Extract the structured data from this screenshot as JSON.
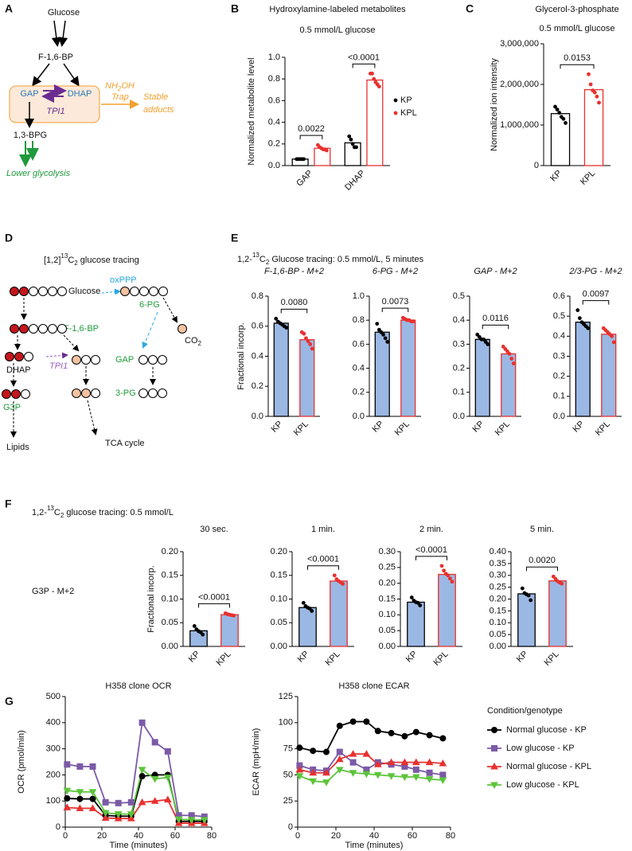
{
  "panel_labels": [
    "A",
    "B",
    "C",
    "D",
    "E",
    "F",
    "G"
  ],
  "diagram_a": {
    "glucose": "Glucose",
    "f16bp": "F-1,6-BP",
    "gap": "GAP",
    "dhap": "DHAP",
    "tpi1": "TPI1",
    "nh2oh": [
      "NH",
      "2",
      "OH"
    ],
    "trap": "Trap",
    "stable_adducts": [
      "Stable",
      "adducts"
    ],
    "bpg": "1,3-BPG",
    "lower_glycolysis": "Lower glycolysis"
  },
  "diagram_d": {
    "title": [
      "[1,2]",
      "13",
      "C",
      "2",
      " glucose tracing"
    ],
    "glucose": "Glucose",
    "oxppp": "oxPPP",
    "pg6": "6-PG",
    "co2": [
      "CO",
      "2"
    ],
    "f16bp": "F-1,6-BP",
    "dhap": "DHAP",
    "tpi1": "TPI1",
    "gap": "GAP",
    "g3p": "G3P",
    "pg3": "3-PG",
    "lipids": "Lipids",
    "tca": "TCA cycle"
  },
  "panel_e": {
    "title": [
      "1,2-",
      "13",
      "C",
      "2",
      " Glucose tracing: 0.5 mmol/L, 5 minutes"
    ]
  },
  "panel_f": {
    "title": [
      "1,2-",
      "13",
      "C",
      "2",
      " glucose tracing: 0.5 mmol/L"
    ],
    "metabolite": "G3P - M+2"
  },
  "chart_data": [
    {
      "type": "bar",
      "title": "Hydroxylamine-labeled metabolites",
      "subtitle": "0.5 mmol/L glucose",
      "ylabel": "Normalized metabolite level",
      "categories": [
        "GAP",
        "DHAP"
      ],
      "series": [
        {
          "name": "KP",
          "color": "#000000",
          "values": [
            0.06,
            0.21
          ],
          "points": [
            [
              0.06,
              0.06,
              0.06,
              0.06,
              0.06
            ],
            [
              0.27,
              0.24,
              0.2,
              0.17,
              0.17
            ]
          ]
        },
        {
          "name": "KPL",
          "color": "#e8312f",
          "values": [
            0.16,
            0.79
          ],
          "points": [
            [
              0.19,
              0.17,
              0.16,
              0.15,
              0.15,
              0.14
            ],
            [
              0.85,
              0.85,
              0.8,
              0.77,
              0.75,
              0.73
            ]
          ]
        }
      ],
      "fill": "#ffffff",
      "ylim": [
        0,
        1
      ],
      "yticks": [
        {
          "value": 0,
          "label": "0.0"
        },
        0.2,
        0.4,
        0.6,
        0.8,
        {
          "value": 1,
          "label": "1.0"
        }
      ],
      "pvalues": [
        "0.0022",
        "<0.0001"
      ],
      "legend": "right"
    },
    {
      "type": "bar",
      "title": "Glycerol-3-phosphate",
      "subtitle": "0.5 mmol/L glucose",
      "ylabel": "Normalized ion intensity",
      "categories": [
        "KP",
        "KPL"
      ],
      "values": [
        1280000,
        1870000
      ],
      "colors": [
        "#000000",
        "#e8312f"
      ],
      "points": [
        [
          1450000,
          1380000,
          1300000,
          1200000,
          1150000,
          1050000
        ],
        [
          2250000,
          2000000,
          1850000,
          1800000,
          1700000,
          1550000
        ]
      ],
      "fill": "#ffffff",
      "ylim": [
        0,
        3000000
      ],
      "yticks": [
        0,
        {
          "value": 1000000,
          "label": "1,000,000"
        },
        {
          "value": 2000000,
          "label": "2,000,000"
        },
        {
          "value": 3000000,
          "label": "3,000,000"
        }
      ],
      "pvalues": [
        "0.0153"
      ]
    },
    {
      "type": "bar",
      "title": "F-1,6-BP - M+2",
      "title_style": "italic",
      "ylabel": "Fractional incorp.",
      "categories": [
        "KP",
        "KPL"
      ],
      "values": [
        0.62,
        0.51
      ],
      "colors": [
        "#000000",
        "#e8312f"
      ],
      "points": [
        [
          0.65,
          0.63,
          0.62,
          0.61,
          0.6,
          0.59
        ],
        [
          0.56,
          0.55,
          0.52,
          0.5,
          0.48,
          0.45
        ]
      ],
      "fill": "#9ab8e3",
      "ylim": [
        0,
        0.8
      ],
      "yticks": [
        {
          "value": 0,
          "label": "0.0"
        },
        0.2,
        0.4,
        0.6,
        0.8
      ],
      "pvalues": [
        "0.0080"
      ]
    },
    {
      "type": "bar",
      "title": "6-PG - M+2",
      "title_style": "italic",
      "categories": [
        "KP",
        "KPL"
      ],
      "values": [
        0.7,
        0.8
      ],
      "colors": [
        "#000000",
        "#e8312f"
      ],
      "points": [
        [
          0.77,
          0.72,
          0.7,
          0.68,
          0.65,
          0.62
        ],
        [
          0.82,
          0.81,
          0.8,
          0.8,
          0.79,
          0.79
        ]
      ],
      "fill": "#9ab8e3",
      "ylim": [
        0,
        1
      ],
      "yticks": [
        {
          "value": 0,
          "label": "0.0"
        },
        0.2,
        0.4,
        0.6,
        0.8,
        {
          "value": 1,
          "label": "1.0"
        }
      ],
      "pvalues": [
        "0.0073"
      ]
    },
    {
      "type": "bar",
      "title": "GAP - M+2",
      "title_style": "italic",
      "categories": [
        "KP",
        "KPL"
      ],
      "values": [
        0.32,
        0.26
      ],
      "colors": [
        "#000000",
        "#e8312f"
      ],
      "points": [
        [
          0.34,
          0.33,
          0.32,
          0.32,
          0.31,
          0.3
        ],
        [
          0.29,
          0.28,
          0.27,
          0.26,
          0.24,
          0.22
        ]
      ],
      "fill": "#9ab8e3",
      "ylim": [
        0,
        0.5
      ],
      "yticks": [
        {
          "value": 0,
          "label": "0.0"
        },
        0.1,
        0.2,
        0.3,
        0.4,
        0.5
      ],
      "pvalues": [
        "0.0116"
      ]
    },
    {
      "type": "bar",
      "title": "2/3-PG - M+2",
      "title_style": "italic",
      "categories": [
        "KP",
        "KPL"
      ],
      "values": [
        0.47,
        0.41
      ],
      "colors": [
        "#000000",
        "#e8312f"
      ],
      "points": [
        [
          0.53,
          0.49,
          0.47,
          0.46,
          0.45,
          0.44
        ],
        [
          0.44,
          0.43,
          0.42,
          0.41,
          0.4,
          0.37
        ]
      ],
      "fill": "#9ab8e3",
      "ylim": [
        0,
        0.6
      ],
      "yticks": [
        {
          "value": 0,
          "label": "0.0"
        },
        0.1,
        0.2,
        0.3,
        0.4,
        0.5,
        0.6
      ],
      "pvalues": [
        "0.0097"
      ]
    },
    {
      "type": "bar",
      "title": "30 sec.",
      "ylabel": "Fractional incorp.",
      "categories": [
        "KP",
        "KPL"
      ],
      "values": [
        0.033,
        0.067
      ],
      "colors": [
        "#000000",
        "#e8312f"
      ],
      "points": [
        [
          0.043,
          0.036,
          0.032,
          0.03,
          0.025
        ],
        [
          0.07,
          0.068,
          0.067,
          0.066,
          0.065
        ]
      ],
      "fill": "#9ab8e3",
      "ylim": [
        0,
        0.2
      ],
      "yticks": [
        {
          "value": 0,
          "label": "0.00"
        },
        0.05,
        {
          "value": 0.1,
          "label": "0.10"
        },
        0.15,
        {
          "value": 0.2,
          "label": "0.20"
        }
      ],
      "pvalues": [
        "<0.0001"
      ]
    },
    {
      "type": "bar",
      "title": "1 min.",
      "categories": [
        "KP",
        "KPL"
      ],
      "values": [
        0.082,
        0.138
      ],
      "colors": [
        "#000000",
        "#e8312f"
      ],
      "points": [
        [
          0.092,
          0.085,
          0.082,
          0.08,
          0.075
        ],
        [
          0.15,
          0.142,
          0.138,
          0.135,
          0.132
        ]
      ],
      "fill": "#9ab8e3",
      "ylim": [
        0,
        0.2
      ],
      "yticks": [
        {
          "value": 0,
          "label": "0.00"
        },
        0.05,
        {
          "value": 0.1,
          "label": "0.10"
        },
        0.15,
        {
          "value": 0.2,
          "label": "0.20"
        }
      ],
      "pvalues": [
        "<0.0001"
      ]
    },
    {
      "type": "bar",
      "title": "2 min.",
      "categories": [
        "KP",
        "KPL"
      ],
      "values": [
        0.14,
        0.228
      ],
      "colors": [
        "#000000",
        "#e8312f"
      ],
      "points": [
        [
          0.155,
          0.145,
          0.14,
          0.138,
          0.13
        ],
        [
          0.255,
          0.24,
          0.23,
          0.225,
          0.215,
          0.205
        ]
      ],
      "fill": "#9ab8e3",
      "ylim": [
        0,
        0.3
      ],
      "yticks": [
        {
          "value": 0,
          "label": "0.00"
        },
        0.05,
        {
          "value": 0.1,
          "label": "0.10"
        },
        0.15,
        {
          "value": 0.2,
          "label": "0.20"
        },
        0.25,
        {
          "value": 0.3,
          "label": "0.30"
        }
      ],
      "pvalues": [
        "<0.0001"
      ]
    },
    {
      "type": "bar",
      "title": "5 min.",
      "categories": [
        "KP",
        "KPL"
      ],
      "values": [
        0.222,
        0.277
      ],
      "colors": [
        "#000000",
        "#e8312f"
      ],
      "points": [
        [
          0.245,
          0.225,
          0.22,
          0.215,
          0.195
        ],
        [
          0.295,
          0.285,
          0.275,
          0.27,
          0.265
        ]
      ],
      "fill": "#9ab8e3",
      "ylim": [
        0,
        0.4
      ],
      "yticks": [
        {
          "value": 0,
          "label": "0.00"
        },
        0.05,
        {
          "value": 0.1,
          "label": "0.10"
        },
        0.15,
        {
          "value": 0.2,
          "label": "0.20"
        },
        0.25,
        {
          "value": 0.3,
          "label": "0.30"
        },
        0.35,
        {
          "value": 0.4,
          "label": "0.40"
        }
      ],
      "pvalues": [
        "0.0020"
      ]
    },
    {
      "type": "line",
      "title": "H358 clone OCR",
      "xlabel": "Time (minutes)",
      "ylabel": "OCR (pmol/min)",
      "x": [
        1,
        8,
        15,
        22,
        29,
        36,
        42,
        49,
        56,
        62,
        69,
        76
      ],
      "series": [
        {
          "name": "Normal glucose - KP",
          "color": "#000000",
          "marker": "circle",
          "values": [
            110,
            108,
            108,
            45,
            42,
            42,
            195,
            200,
            200,
            22,
            22,
            22
          ]
        },
        {
          "name": "Low glucose - KP",
          "color": "#7b5aa6",
          "marker": "square",
          "values": [
            240,
            232,
            232,
            95,
            92,
            95,
            400,
            325,
            290,
            45,
            45,
            40
          ]
        },
        {
          "name": "Normal glucose - KPL",
          "color": "#e8312f",
          "marker": "triangle-up",
          "values": [
            75,
            72,
            72,
            35,
            33,
            33,
            95,
            100,
            105,
            15,
            15,
            15
          ]
        },
        {
          "name": "Low glucose - KPL",
          "color": "#5cc43a",
          "marker": "triangle-down",
          "values": [
            140,
            135,
            135,
            55,
            50,
            50,
            220,
            185,
            190,
            30,
            28,
            28
          ]
        }
      ],
      "xlim": [
        0,
        80
      ],
      "xticks": [
        0,
        20,
        40,
        60,
        80
      ],
      "ylim": [
        0,
        500
      ],
      "yticks": [
        0,
        100,
        200,
        300,
        400,
        500
      ]
    },
    {
      "type": "line",
      "title": "H358 clone ECAR",
      "xlabel": "Time (minutes)",
      "ylabel": "ECAR (mpH/min)",
      "x": [
        1,
        8,
        15,
        22,
        29,
        36,
        42,
        49,
        56,
        62,
        69,
        76
      ],
      "series": [
        {
          "name": "Normal glucose - KP",
          "color": "#000000",
          "marker": "circle",
          "values": [
            76,
            73,
            72,
            97,
            101,
            101,
            92,
            90,
            87,
            91,
            88,
            85
          ]
        },
        {
          "name": "Low glucose - KP",
          "color": "#7b5aa6",
          "marker": "square",
          "values": [
            59,
            55,
            54,
            72,
            62,
            55,
            62,
            60,
            58,
            55,
            52,
            50
          ]
        },
        {
          "name": "Normal glucose - KPL",
          "color": "#e8312f",
          "marker": "triangle-up",
          "values": [
            55,
            52,
            52,
            65,
            70,
            70,
            60,
            62,
            62,
            62,
            62,
            61
          ]
        },
        {
          "name": "Low glucose - KPL",
          "color": "#5cc43a",
          "marker": "triangle-down",
          "values": [
            49,
            44,
            43,
            55,
            52,
            51,
            50,
            49,
            48,
            48,
            46,
            45
          ]
        }
      ],
      "xlim": [
        0,
        80
      ],
      "xticks": [
        0,
        20,
        40,
        60,
        80
      ],
      "ylim": [
        0,
        125
      ],
      "yticks": [
        0,
        25,
        50,
        75,
        100,
        125
      ],
      "legend": "right",
      "legend_title": "Condition/genotype"
    }
  ]
}
